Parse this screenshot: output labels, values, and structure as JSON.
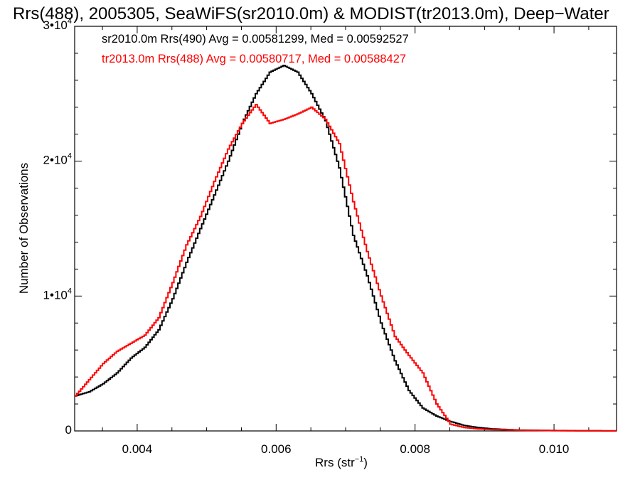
{
  "chart_data": {
    "type": "line",
    "title": "Rrs(488), 2005305, SeaWiFS(sr2010.0m) & MODIST(tr2013.0m), Deep−Water",
    "xlabel": "Rrs (str",
    "xlabel_unit_exponent": "−1",
    "xlabel_close": ")",
    "ylabel": "Number of Observations",
    "xlim": [
      0.0031,
      0.0109
    ],
    "ylim": [
      0,
      30000
    ],
    "grid": false,
    "legend_position": "top-left",
    "x_ticks": [
      {
        "value": 0.004,
        "label": "0.004"
      },
      {
        "value": 0.006,
        "label": "0.006"
      },
      {
        "value": 0.008,
        "label": "0.008"
      },
      {
        "value": 0.01,
        "label": "0.010"
      }
    ],
    "y_ticks": [
      {
        "value": 0,
        "mantissa": "0",
        "exponent": ""
      },
      {
        "value": 10000,
        "mantissa": "1•10",
        "exponent": "4"
      },
      {
        "value": 20000,
        "mantissa": "2•10",
        "exponent": "4"
      },
      {
        "value": 30000,
        "mantissa": "3•10",
        "exponent": "4"
      }
    ],
    "series": [
      {
        "name": "sr2010.0m Rrs(490)",
        "label": "sr2010.0m Rrs(490) Avg = 0.00581299, Med = 0.00592527",
        "color": "#000000",
        "points": [
          [
            0.0031,
            2600
          ],
          [
            0.0033,
            2900
          ],
          [
            0.0035,
            3500
          ],
          [
            0.0037,
            4300
          ],
          [
            0.0039,
            5400
          ],
          [
            0.0041,
            6200
          ],
          [
            0.0043,
            7500
          ],
          [
            0.0045,
            9800
          ],
          [
            0.0047,
            12500
          ],
          [
            0.0049,
            15000
          ],
          [
            0.0051,
            17500
          ],
          [
            0.0053,
            20000
          ],
          [
            0.0055,
            22800
          ],
          [
            0.0057,
            25000
          ],
          [
            0.0059,
            26600
          ],
          [
            0.0061,
            27100
          ],
          [
            0.0063,
            26600
          ],
          [
            0.0065,
            25000
          ],
          [
            0.0067,
            23000
          ],
          [
            0.0069,
            19500
          ],
          [
            0.0071,
            14500
          ],
          [
            0.0073,
            11500
          ],
          [
            0.0075,
            8000
          ],
          [
            0.0077,
            5200
          ],
          [
            0.0079,
            3000
          ],
          [
            0.0081,
            1700
          ],
          [
            0.0083,
            1100
          ],
          [
            0.0085,
            700
          ],
          [
            0.0087,
            400
          ],
          [
            0.0089,
            250
          ],
          [
            0.0091,
            150
          ],
          [
            0.0095,
            60
          ],
          [
            0.01,
            30
          ],
          [
            0.0105,
            10
          ],
          [
            0.0109,
            5
          ]
        ]
      },
      {
        "name": "tr2013.0m Rrs(488)",
        "label": "tr2013.0m Rrs(488) Avg = 0.00580717, Med = 0.00588427",
        "color": "#ff0000",
        "points": [
          [
            0.0031,
            2600
          ],
          [
            0.0033,
            3800
          ],
          [
            0.0035,
            5000
          ],
          [
            0.0037,
            5900
          ],
          [
            0.0039,
            6500
          ],
          [
            0.0041,
            7100
          ],
          [
            0.0043,
            8400
          ],
          [
            0.0045,
            11000
          ],
          [
            0.0047,
            13800
          ],
          [
            0.0049,
            15900
          ],
          [
            0.0051,
            18500
          ],
          [
            0.0053,
            20900
          ],
          [
            0.0055,
            22800
          ],
          [
            0.0057,
            24200
          ],
          [
            0.0059,
            22800
          ],
          [
            0.0061,
            23100
          ],
          [
            0.0063,
            23500
          ],
          [
            0.0065,
            24000
          ],
          [
            0.0067,
            23100
          ],
          [
            0.0069,
            21300
          ],
          [
            0.0071,
            17000
          ],
          [
            0.0073,
            13300
          ],
          [
            0.0075,
            10000
          ],
          [
            0.0077,
            7000
          ],
          [
            0.0079,
            5600
          ],
          [
            0.0081,
            4300
          ],
          [
            0.0083,
            2000
          ],
          [
            0.0085,
            500
          ],
          [
            0.0087,
            250
          ],
          [
            0.0089,
            150
          ],
          [
            0.0091,
            100
          ],
          [
            0.0095,
            50
          ],
          [
            0.01,
            20
          ],
          [
            0.0105,
            10
          ],
          [
            0.0109,
            5
          ]
        ]
      }
    ]
  }
}
